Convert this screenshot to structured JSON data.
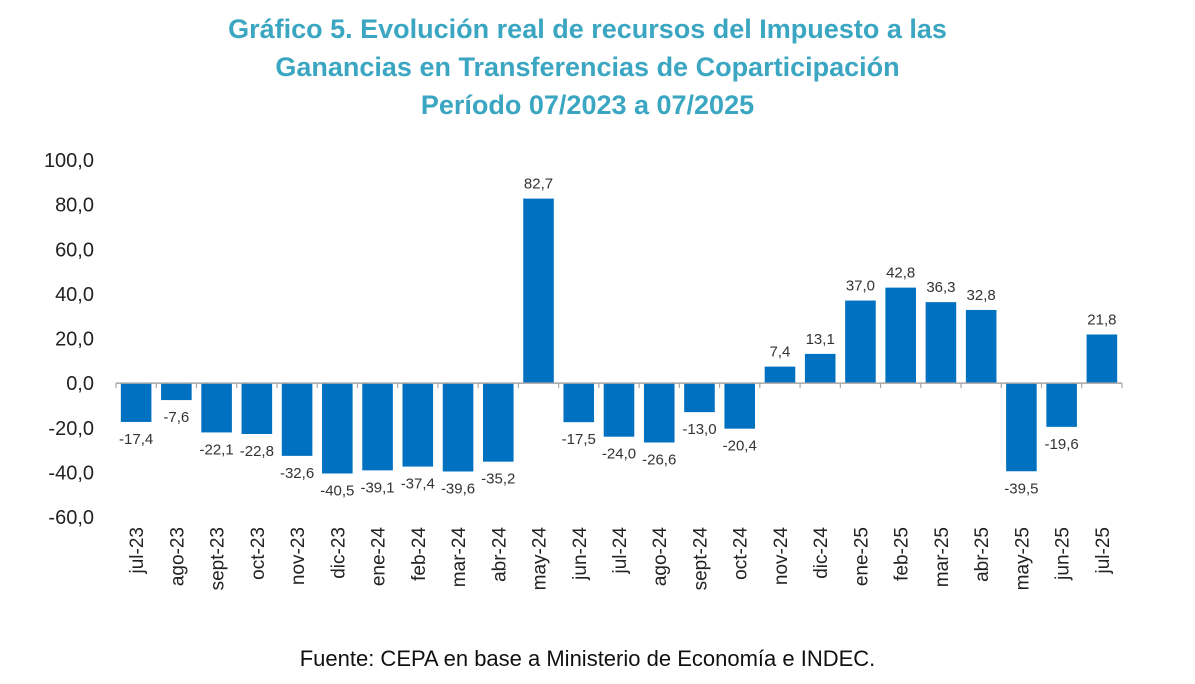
{
  "title_lines": [
    "Gráfico 5. Evolución real de recursos del Impuesto a las",
    "Ganancias en Transferencias de Coparticipación",
    "Período 07/2023 a 07/2025"
  ],
  "source": "Fuente: CEPA en base a Ministerio de Economía e INDEC.",
  "colors": {
    "bar": "#0070C0",
    "title": "#3AA6C2",
    "axis": "#A6A6A6"
  },
  "chart_data": {
    "type": "bar",
    "title": "Gráfico 5. Evolución real de recursos del Impuesto a las Ganancias en Transferencias de Coparticipación Período 07/2023 a 07/2025",
    "xlabel": "",
    "ylabel": "",
    "ylim": [
      -60,
      100
    ],
    "yticks": [
      100,
      80,
      60,
      40,
      20,
      0,
      -20,
      -40,
      -60
    ],
    "ytick_labels": [
      "100,0",
      "80,0",
      "60,0",
      "40,0",
      "20,0",
      "0,0",
      "-20,0",
      "-40,0",
      "-60,0"
    ],
    "grid": false,
    "legend": "none",
    "categories": [
      "jul-23",
      "ago-23",
      "sept-23",
      "oct-23",
      "nov-23",
      "dic-23",
      "ene-24",
      "feb-24",
      "mar-24",
      "abr-24",
      "may-24",
      "jun-24",
      "jul-24",
      "ago-24",
      "sept-24",
      "oct-24",
      "nov-24",
      "dic-24",
      "ene-25",
      "feb-25",
      "mar-25",
      "abr-25",
      "may-25",
      "jun-25",
      "jul-25"
    ],
    "values": [
      -17.4,
      -7.6,
      -22.1,
      -22.8,
      -32.6,
      -40.5,
      -39.1,
      -37.4,
      -39.6,
      -35.2,
      82.7,
      -17.5,
      -24.0,
      -26.6,
      -13.0,
      -20.4,
      7.4,
      13.1,
      37.0,
      42.8,
      36.3,
      32.8,
      -39.5,
      -19.6,
      21.8
    ],
    "value_labels": [
      "-17,4",
      "-7,6",
      "-22,1",
      "-22,8",
      "-32,6",
      "-40,5",
      "-39,1",
      "-37,4",
      "-39,6",
      "-35,2",
      "82,7",
      "-17,5",
      "-24,0",
      "-26,6",
      "-13,0",
      "-20,4",
      "7,4",
      "13,1",
      "37,0",
      "42,8",
      "36,3",
      "32,8",
      "-39,5",
      "-19,6",
      "21,8"
    ]
  }
}
